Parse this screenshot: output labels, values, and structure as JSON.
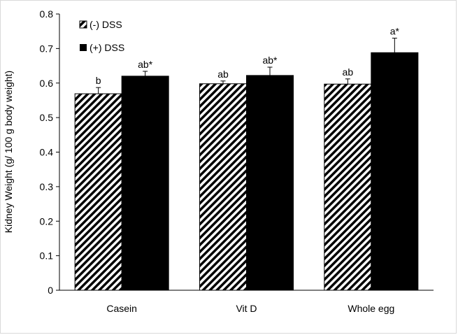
{
  "chart_data": {
    "type": "bar",
    "categories": [
      "Casein",
      "Vit D",
      "Whole egg"
    ],
    "series": [
      {
        "name": "(-) DSS",
        "values": [
          0.569,
          0.598,
          0.597
        ],
        "errors": [
          0.018,
          0.008,
          0.015
        ],
        "labels": [
          "b",
          "ab",
          "ab"
        ],
        "pattern": "diagonal-hatch",
        "color": "#000000"
      },
      {
        "name": "(+) DSS",
        "values": [
          0.62,
          0.622,
          0.688
        ],
        "errors": [
          0.014,
          0.024,
          0.042
        ],
        "labels": [
          "ab*",
          "ab*",
          "a*"
        ],
        "pattern": "solid",
        "color": "#000000"
      }
    ],
    "title": "",
    "xlabel": "",
    "ylabel": "Kidney Weight (g/ 100 g body weight)",
    "ylim": [
      0,
      0.8
    ],
    "yticks": [
      "0",
      "0.1",
      "0.2",
      "0.3",
      "0.4",
      "0.5",
      "0.6",
      "0.7",
      "0.8"
    ],
    "grid": false,
    "legend_position": "top-left"
  }
}
